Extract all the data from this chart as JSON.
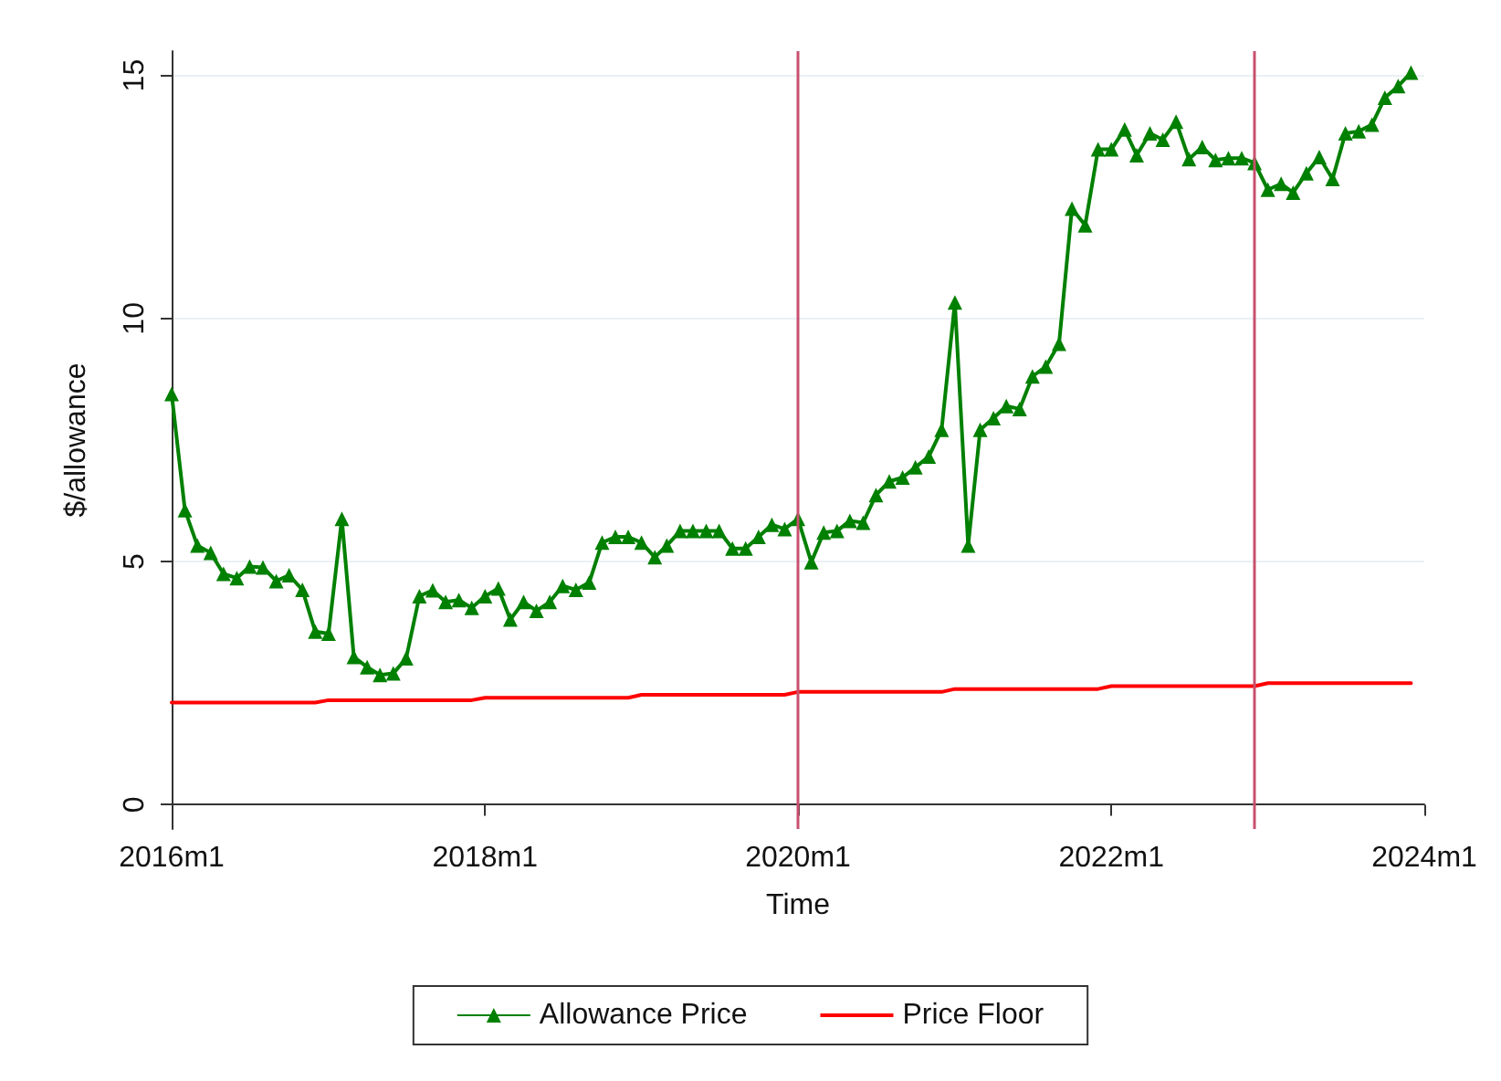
{
  "chart_data": {
    "type": "line",
    "xlabel": "Time",
    "ylabel": "$/allowance",
    "x": [
      "2016-01",
      "2016-02",
      "2016-03",
      "2016-04",
      "2016-05",
      "2016-06",
      "2016-07",
      "2016-08",
      "2016-09",
      "2016-10",
      "2016-11",
      "2016-12",
      "2017-01",
      "2017-02",
      "2017-03",
      "2017-04",
      "2017-05",
      "2017-06",
      "2017-07",
      "2017-08",
      "2017-09",
      "2017-10",
      "2017-11",
      "2017-12",
      "2018-01",
      "2018-02",
      "2018-03",
      "2018-04",
      "2018-05",
      "2018-06",
      "2018-07",
      "2018-08",
      "2018-09",
      "2018-10",
      "2018-11",
      "2018-12",
      "2019-01",
      "2019-02",
      "2019-03",
      "2019-04",
      "2019-05",
      "2019-06",
      "2019-07",
      "2019-08",
      "2019-09",
      "2019-10",
      "2019-11",
      "2019-12",
      "2020-01",
      "2020-02",
      "2020-03",
      "2020-04",
      "2020-05",
      "2020-06",
      "2020-07",
      "2020-08",
      "2020-09",
      "2020-10",
      "2020-11",
      "2020-12",
      "2021-01",
      "2021-02",
      "2021-03",
      "2021-04",
      "2021-05",
      "2021-06",
      "2021-07",
      "2021-08",
      "2021-09",
      "2021-10",
      "2021-11",
      "2021-12",
      "2022-01",
      "2022-02",
      "2022-03",
      "2022-04",
      "2022-05",
      "2022-06",
      "2022-07",
      "2022-08",
      "2022-09",
      "2022-10",
      "2022-11",
      "2022-12",
      "2023-01",
      "2023-02",
      "2023-03",
      "2023-04",
      "2023-05",
      "2023-06",
      "2023-07",
      "2023-08",
      "2023-09",
      "2023-10",
      "2023-11",
      "2023-12"
    ],
    "series": [
      {
        "name": "Allowance Price",
        "color": "#008000",
        "marker": "triangle",
        "values": [
          8.45,
          6.06,
          5.33,
          5.18,
          4.75,
          4.66,
          4.9,
          4.88,
          4.6,
          4.72,
          4.42,
          3.56,
          3.52,
          5.88,
          3.04,
          2.83,
          2.67,
          2.7,
          3.01,
          4.29,
          4.41,
          4.17,
          4.21,
          4.05,
          4.29,
          4.45,
          3.81,
          4.17,
          3.99,
          4.17,
          4.5,
          4.42,
          4.57,
          5.39,
          5.51,
          5.51,
          5.39,
          5.09,
          5.33,
          5.63,
          5.63,
          5.63,
          5.63,
          5.27,
          5.27,
          5.51,
          5.76,
          5.67,
          5.88,
          4.99,
          5.6,
          5.63,
          5.84,
          5.8,
          6.37,
          6.65,
          6.73,
          6.94,
          7.16,
          7.71,
          10.33,
          5.33,
          7.71,
          7.95,
          8.2,
          8.14,
          8.81,
          9.01,
          9.48,
          12.26,
          11.92,
          13.48,
          13.48,
          13.89,
          13.36,
          13.81,
          13.68,
          14.05,
          13.28,
          13.53,
          13.26,
          13.3,
          13.3,
          13.2,
          12.65,
          12.77,
          12.59,
          12.99,
          13.32,
          12.87,
          13.81,
          13.85,
          13.99,
          14.54,
          14.78,
          15.06
        ]
      },
      {
        "name": "Price Floor",
        "color": "#ff0000",
        "marker": "none",
        "values": [
          2.1,
          2.1,
          2.1,
          2.1,
          2.1,
          2.1,
          2.1,
          2.1,
          2.1,
          2.1,
          2.1,
          2.1,
          2.15,
          2.15,
          2.15,
          2.15,
          2.15,
          2.15,
          2.15,
          2.15,
          2.15,
          2.15,
          2.15,
          2.15,
          2.2,
          2.2,
          2.2,
          2.2,
          2.2,
          2.2,
          2.2,
          2.2,
          2.2,
          2.2,
          2.2,
          2.2,
          2.26,
          2.26,
          2.26,
          2.26,
          2.26,
          2.26,
          2.26,
          2.26,
          2.26,
          2.26,
          2.26,
          2.26,
          2.32,
          2.32,
          2.32,
          2.32,
          2.32,
          2.32,
          2.32,
          2.32,
          2.32,
          2.32,
          2.32,
          2.32,
          2.38,
          2.38,
          2.38,
          2.38,
          2.38,
          2.38,
          2.38,
          2.38,
          2.38,
          2.38,
          2.38,
          2.38,
          2.44,
          2.44,
          2.44,
          2.44,
          2.44,
          2.44,
          2.44,
          2.44,
          2.44,
          2.44,
          2.44,
          2.44,
          2.5,
          2.5,
          2.5,
          2.5,
          2.5,
          2.5,
          2.5,
          2.5,
          2.5,
          2.5,
          2.5,
          2.5
        ]
      }
    ],
    "xlim": [
      "2016-01",
      "2024-01"
    ],
    "xticks": [
      {
        "value": "2016-01",
        "label": "2016m1"
      },
      {
        "value": "2018-01",
        "label": "2018m1"
      },
      {
        "value": "2020-01",
        "label": "2020m1"
      },
      {
        "value": "2022-01",
        "label": "2022m1"
      },
      {
        "value": "2024-01",
        "label": "2024m1"
      }
    ],
    "ylim": [
      -0.5,
      15.5
    ],
    "yticks": [
      0,
      5,
      10,
      15
    ],
    "ref_lines": [
      {
        "axis": "x",
        "value": "2020-01",
        "color": "#c8506e"
      },
      {
        "axis": "x",
        "value": "2022-12",
        "color": "#c8506e"
      }
    ],
    "grid": "y",
    "legend": "bottom",
    "line_style": "solid"
  }
}
